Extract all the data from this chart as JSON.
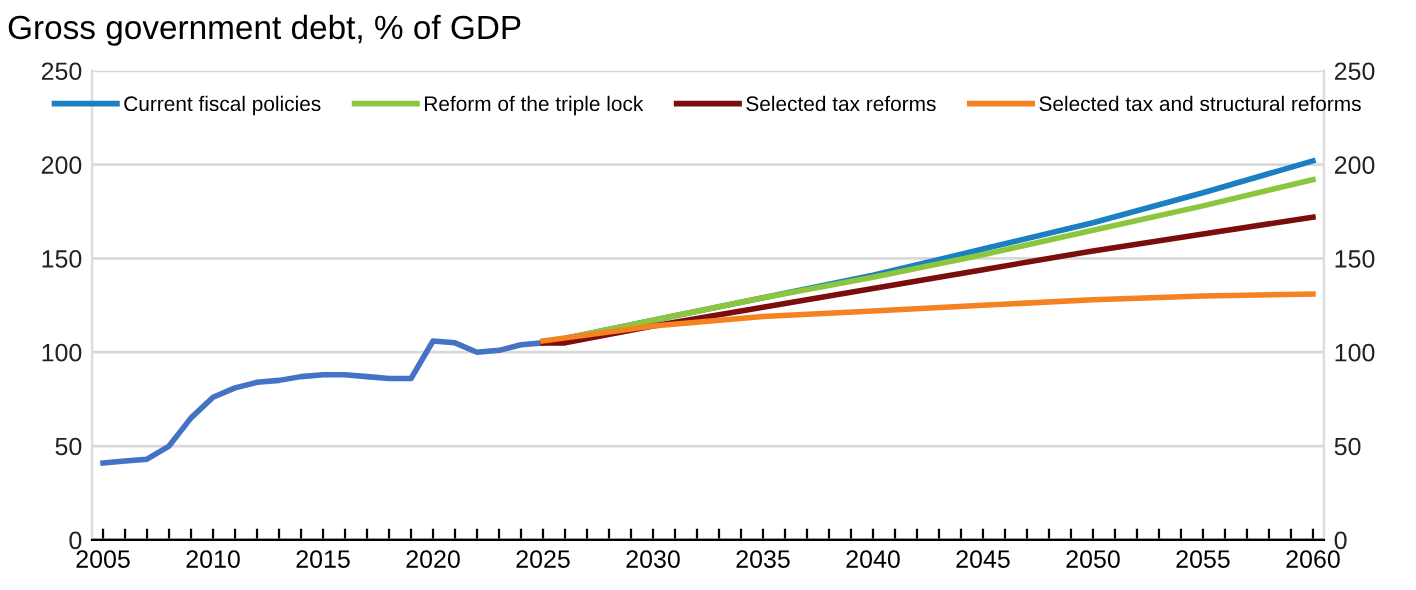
{
  "chart_data": {
    "type": "line",
    "title": "Gross government debt, % of GDP",
    "series": [
      {
        "color": "#4472c4",
        "x": [
          2005,
          2006,
          2007,
          2008,
          2009,
          2010,
          2011,
          2012,
          2013,
          2014,
          2015,
          2016,
          2017,
          2018,
          2019,
          2020,
          2021,
          2022,
          2023,
          2024,
          2025
        ],
        "values": [
          41,
          42,
          43,
          50,
          65,
          76,
          81,
          84,
          85,
          87,
          88,
          88,
          87,
          86,
          86,
          106,
          105,
          100,
          101,
          104,
          105
        ]
      },
      {
        "name": "Current fiscal policies",
        "color": "#1b7fc4",
        "x": [
          2025,
          2030,
          2035,
          2040,
          2045,
          2050,
          2055,
          2060
        ],
        "values": [
          105,
          117,
          129,
          141,
          155,
          169,
          185,
          202
        ]
      },
      {
        "name": "Reform of the triple lock",
        "color": "#8cc63f",
        "x": [
          2025,
          2030,
          2035,
          2040,
          2045,
          2050,
          2055,
          2060
        ],
        "values": [
          105,
          117,
          129,
          140,
          152,
          165,
          178,
          192
        ]
      },
      {
        "name": "Selected tax reforms",
        "color": "#7b0d0d",
        "x": [
          2025,
          2026,
          2030,
          2035,
          2040,
          2045,
          2050,
          2055,
          2060
        ],
        "values": [
          105,
          105,
          114,
          124,
          134,
          144,
          154,
          163,
          172
        ]
      },
      {
        "name": "Selected tax and structural reforms",
        "color": "#f58220",
        "x": [
          2025,
          2030,
          2035,
          2040,
          2045,
          2050,
          2055,
          2060
        ],
        "values": [
          106,
          114,
          119,
          122,
          125,
          128,
          130,
          131
        ]
      }
    ],
    "xlim": [
      2004.5,
      2060.5
    ],
    "xticks": [
      2005,
      {
        "value": 2006,
        "label": null
      },
      {
        "value": 2007,
        "label": null
      },
      {
        "value": 2008,
        "label": null
      },
      {
        "value": 2009,
        "label": null
      },
      2010,
      {
        "value": 2011,
        "label": null
      },
      {
        "value": 2012,
        "label": null
      },
      {
        "value": 2013,
        "label": null
      },
      {
        "value": 2014,
        "label": null
      },
      2015,
      {
        "value": 2016,
        "label": null
      },
      {
        "value": 2017,
        "label": null
      },
      {
        "value": 2018,
        "label": null
      },
      {
        "value": 2019,
        "label": null
      },
      2020,
      {
        "value": 2021,
        "label": null
      },
      {
        "value": 2022,
        "label": null
      },
      {
        "value": 2023,
        "label": null
      },
      {
        "value": 2024,
        "label": null
      },
      2025,
      {
        "value": 2026,
        "label": null
      },
      {
        "value": 2027,
        "label": null
      },
      {
        "value": 2028,
        "label": null
      },
      {
        "value": 2029,
        "label": null
      },
      2030,
      {
        "value": 2031,
        "label": null
      },
      {
        "value": 2032,
        "label": null
      },
      {
        "value": 2033,
        "label": null
      },
      {
        "value": 2034,
        "label": null
      },
      2035,
      {
        "value": 2036,
        "label": null
      },
      {
        "value": 2037,
        "label": null
      },
      {
        "value": 2038,
        "label": null
      },
      {
        "value": 2039,
        "label": null
      },
      2040,
      {
        "value": 2041,
        "label": null
      },
      {
        "value": 2042,
        "label": null
      },
      {
        "value": 2043,
        "label": null
      },
      {
        "value": 2044,
        "label": null
      },
      2045,
      {
        "value": 2046,
        "label": null
      },
      {
        "value": 2047,
        "label": null
      },
      {
        "value": 2048,
        "label": null
      },
      {
        "value": 2049,
        "label": null
      },
      2050,
      {
        "value": 2051,
        "label": null
      },
      {
        "value": 2052,
        "label": null
      },
      {
        "value": 2053,
        "label": null
      },
      {
        "value": 2054,
        "label": null
      },
      2055,
      {
        "value": 2056,
        "label": null
      },
      {
        "value": 2057,
        "label": null
      },
      {
        "value": 2058,
        "label": null
      },
      {
        "value": 2059,
        "label": null
      },
      2060
    ],
    "ylim": [
      0,
      250
    ],
    "yticks": [
      0,
      50,
      100,
      150,
      200,
      250
    ],
    "y2lim": [
      0,
      250
    ],
    "y2ticks": [
      0,
      50,
      100,
      150,
      200,
      250
    ],
    "grid": "y",
    "legend": "top",
    "marker": "none",
    "line_style": "solid"
  }
}
